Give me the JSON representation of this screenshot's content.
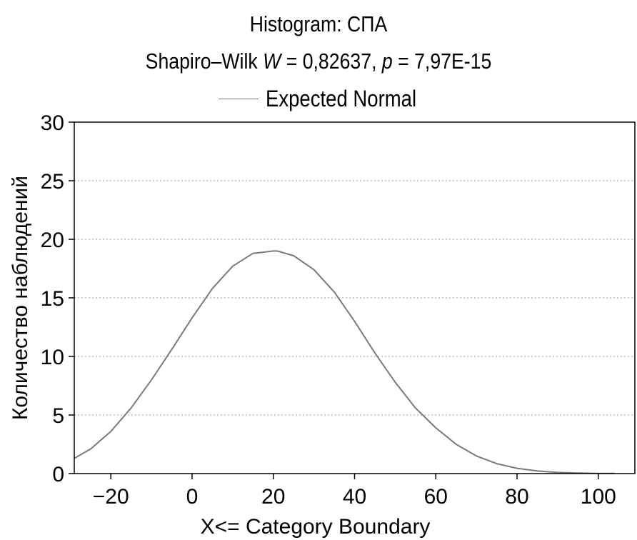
{
  "chart_data": {
    "type": "line",
    "title": "Histogram: СПА",
    "subtitle": {
      "prefix": "Shapiro–Wilk ",
      "w_symbol": "W",
      "w_value": " = 0,82637, ",
      "p_symbol": "p",
      "p_value": " = 7,97E-15"
    },
    "legend": {
      "position": "top-center",
      "entries": [
        "Expected Normal"
      ]
    },
    "xlabel": "X<= Category Boundary",
    "ylabel": "Количество наблюдений",
    "xlim": [
      -29,
      109
    ],
    "ylim": [
      0,
      30
    ],
    "x_ticks": [
      -20,
      0,
      20,
      40,
      60,
      80,
      100
    ],
    "x_tick_labels": [
      "−20",
      "0",
      "20",
      "40",
      "60",
      "80",
      "100"
    ],
    "y_ticks": [
      0,
      5,
      10,
      15,
      20,
      25,
      30
    ],
    "y_tick_labels": [
      "0",
      "5",
      "10",
      "15",
      "20",
      "25",
      "30"
    ],
    "grid": {
      "horizontal": true,
      "vertical": false,
      "style": "dotted"
    },
    "series": [
      {
        "name": "Expected Normal",
        "color": "#7a7a7a",
        "x": [
          -29,
          -25,
          -20,
          -15,
          -10,
          -5,
          0,
          5,
          10,
          15,
          20,
          21,
          25,
          30,
          35,
          40,
          45,
          50,
          55,
          60,
          65,
          70,
          75,
          80,
          85,
          90,
          95,
          100,
          104
        ],
        "y": [
          1.3,
          2.1,
          3.6,
          5.6,
          8.0,
          10.6,
          13.3,
          15.8,
          17.7,
          18.8,
          19.0,
          19.0,
          18.6,
          17.4,
          15.5,
          13.0,
          10.3,
          7.8,
          5.6,
          3.9,
          2.5,
          1.5,
          0.85,
          0.45,
          0.22,
          0.1,
          0.05,
          0.02,
          0.01
        ]
      }
    ]
  }
}
